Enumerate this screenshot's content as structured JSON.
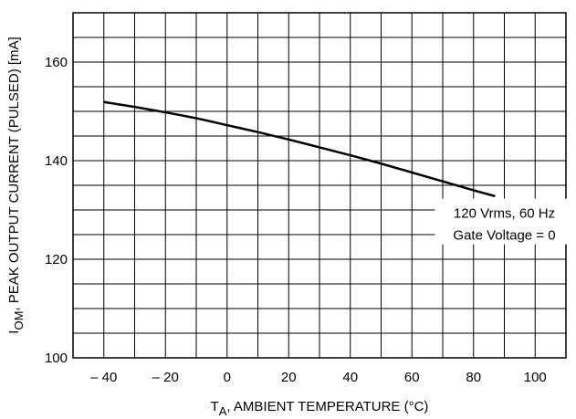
{
  "chart_data": {
    "type": "line",
    "title": "",
    "xlabel": {
      "main": "T",
      "sub": "A",
      "rest": ", AMBIENT TEMPERATURE (°C)"
    },
    "ylabel": {
      "main": "I",
      "sub": "OM",
      "rest": ", PEAK OUTPUT CURRENT (PULSED) [mA]"
    },
    "xlim": [
      -50,
      110
    ],
    "ylim": [
      100,
      170
    ],
    "x_ticks": [
      -40,
      -20,
      0,
      20,
      40,
      60,
      80,
      100
    ],
    "x_tick_labels": [
      "– 40",
      "– 20",
      "0",
      "20",
      "40",
      "60",
      "80",
      "100"
    ],
    "y_ticks": [
      100,
      120,
      140,
      160
    ],
    "y_tick_labels": [
      "100",
      "120",
      "140",
      "160"
    ],
    "grid": true,
    "x_grid_step": 10,
    "y_grid_step": 5,
    "series": [
      {
        "name": "",
        "x": [
          -40,
          -30,
          -20,
          -10,
          0,
          10,
          20,
          30,
          40,
          50,
          60,
          70,
          80,
          87
        ],
        "y": [
          151.9,
          150.9,
          149.8,
          148.6,
          147.2,
          145.8,
          144.3,
          142.7,
          141.1,
          139.4,
          137.6,
          135.8,
          134.0,
          132.8
        ]
      }
    ],
    "annotations": [
      "120 Vrms, 60 Hz",
      "Gate Voltage = 0"
    ],
    "annotation_pos": {
      "x": 90,
      "y": 126
    }
  }
}
